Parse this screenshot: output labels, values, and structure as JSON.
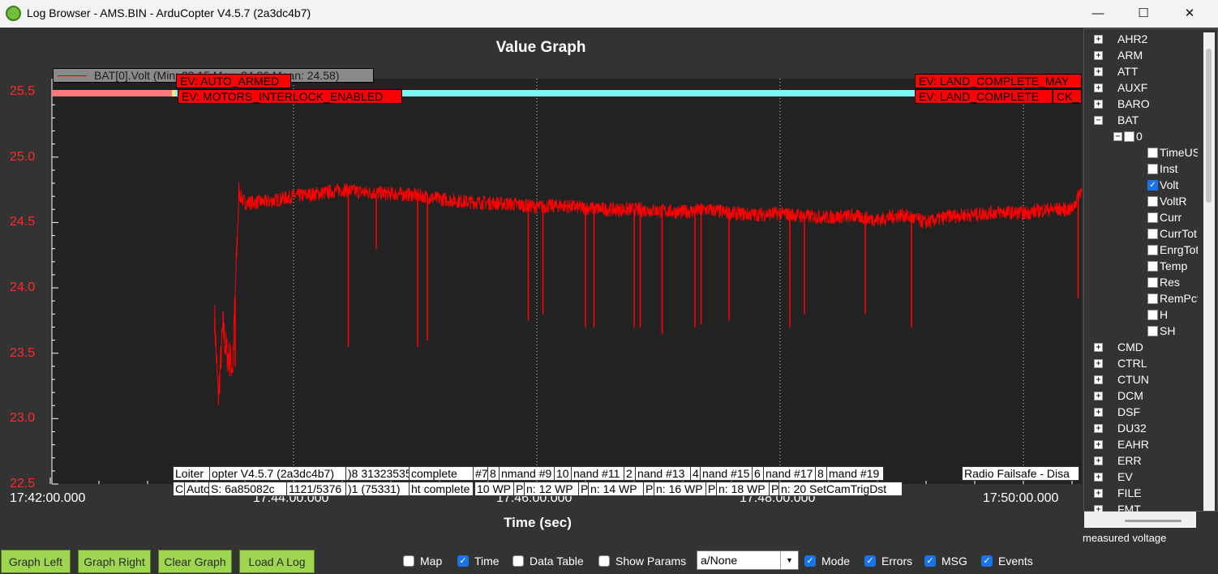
{
  "window": {
    "title": "Log Browser - AMS.BIN - ArduCopter V4.5.7 (2a3dc4b7)",
    "minimize": "—",
    "maximize": "☐",
    "close": "✕"
  },
  "graph": {
    "title": "Value Graph",
    "legend": "BAT[0].Volt  (Min: 23.15 Max: 24.86 Mean: 24.58)",
    "event_labels": [
      "EV: AUTO_ARMED",
      "EV: MOTORS_INTERLOCK_ENABLED",
      "EV: LAND_COMPLETE_MAY",
      "EV: LAND_COMPLETE",
      "CK_"
    ],
    "message_labels_top": [
      "Loiter",
      "opter V4.5.7 (2a3dc4b7)",
      ")8 31323535",
      "complete",
      "#7",
      "8",
      "nmand #9",
      "10",
      "nand #11",
      "2",
      "nand #13",
      "4",
      "nand #15",
      "6",
      "nand #17",
      "8",
      "mand #19",
      "Radio Failsafe - Disa"
    ],
    "message_labels_bottom": [
      "C",
      "Auto",
      "S: 6a85082c",
      "1121/5376",
      ")1 (75331)",
      "ht complete",
      "10 WP",
      "P",
      "n: 12 WP",
      "P",
      "n: 14 WP",
      "P",
      "n: 16 WP",
      "P",
      "n: 18 WP",
      "P",
      "n: 20 SetCamTrigDst"
    ]
  },
  "chart_data": {
    "type": "line",
    "title": "Value Graph",
    "xlabel": "Time (sec)",
    "ylabel": "",
    "x_ticks": [
      "17:42:00.000",
      "17:44:00.000",
      "17:46:00.000",
      "17:48:00.000",
      "17:50:00.000"
    ],
    "y_ticks": [
      "25.5",
      "25.0",
      "24.5",
      "24.0",
      "23.5",
      "23.0",
      "22.5"
    ],
    "ylim": [
      22.5,
      25.6
    ],
    "xlim_minutes_after_1742": [
      0,
      8.6
    ],
    "series": [
      {
        "name": "BAT[0].Volt",
        "color": "#ff0000",
        "x": [
          1.35,
          1.38,
          1.42,
          1.45,
          1.5,
          1.55,
          1.6,
          1.8,
          2.0,
          2.2,
          2.4,
          2.6,
          2.8,
          3.0,
          3.2,
          3.4,
          3.6,
          3.8,
          4.0,
          4.2,
          4.4,
          4.6,
          4.8,
          5.0,
          5.2,
          5.4,
          5.6,
          5.8,
          6.0,
          6.2,
          6.4,
          6.6,
          6.8,
          7.0,
          7.2,
          7.4,
          7.6,
          7.8,
          8.0,
          8.2,
          8.4,
          8.5,
          8.6,
          8.75
        ],
        "values": [
          23.8,
          23.15,
          23.7,
          23.5,
          23.4,
          24.72,
          24.65,
          24.66,
          24.7,
          24.72,
          24.75,
          24.73,
          24.72,
          24.71,
          24.68,
          24.66,
          24.65,
          24.64,
          24.62,
          24.63,
          24.61,
          24.6,
          24.6,
          24.59,
          24.58,
          24.6,
          24.57,
          24.56,
          24.57,
          24.55,
          24.54,
          24.55,
          24.52,
          24.56,
          24.5,
          24.55,
          24.56,
          24.58,
          24.57,
          24.6,
          24.6,
          24.8,
          24.82,
          24.78
        ]
      }
    ],
    "dips": [
      {
        "x": 1.52,
        "value": 23.4
      },
      {
        "x": 2.45,
        "value": 23.55
      },
      {
        "x": 2.68,
        "value": 24.3
      },
      {
        "x": 3.02,
        "value": 23.55
      },
      {
        "x": 3.1,
        "value": 23.6
      },
      {
        "x": 3.93,
        "value": 23.75
      },
      {
        "x": 4.05,
        "value": 23.8
      },
      {
        "x": 4.4,
        "value": 23.7
      },
      {
        "x": 4.47,
        "value": 23.7
      },
      {
        "x": 4.8,
        "value": 23.7
      },
      {
        "x": 4.85,
        "value": 23.7
      },
      {
        "x": 5.03,
        "value": 23.65
      },
      {
        "x": 5.3,
        "value": 23.7
      },
      {
        "x": 5.35,
        "value": 23.72
      },
      {
        "x": 5.58,
        "value": 23.75
      },
      {
        "x": 6.08,
        "value": 23.7
      },
      {
        "x": 6.2,
        "value": 23.8
      },
      {
        "x": 6.7,
        "value": 23.8
      },
      {
        "x": 7.08,
        "value": 23.7
      },
      {
        "x": 8.45,
        "value": 23.92
      }
    ],
    "grid": "vertical dotted at x ticks"
  },
  "footer": {
    "buttons": [
      "Graph Left",
      "Graph Right",
      "Clear Graph",
      "Load A Log"
    ],
    "checkboxes": [
      {
        "label": "Map",
        "checked": false
      },
      {
        "label": "Time",
        "checked": true
      },
      {
        "label": "Data Table",
        "checked": false
      },
      {
        "label": "Show Params",
        "checked": false
      },
      {
        "label": "Mode",
        "checked": true
      },
      {
        "label": "Errors",
        "checked": true
      },
      {
        "label": "MSG",
        "checked": true
      },
      {
        "label": "Events",
        "checked": true
      }
    ],
    "select_value": "a/None",
    "checkmark": "✓",
    "dropdown_arrow": "▼"
  },
  "tree": {
    "expand_plus": "+",
    "expand_minus": "−",
    "top_items": [
      "AHR2",
      "ARM",
      "ATT",
      "AUXF",
      "BARO",
      "BAT"
    ],
    "bat_instance": "0",
    "bat_fields": [
      {
        "label": "TimeUS",
        "checked": false
      },
      {
        "label": "Inst",
        "checked": false
      },
      {
        "label": "Volt",
        "checked": true
      },
      {
        "label": "VoltR",
        "checked": false
      },
      {
        "label": "Curr",
        "checked": false
      },
      {
        "label": "CurrTot",
        "checked": false
      },
      {
        "label": "EnrgTot",
        "checked": false
      },
      {
        "label": "Temp",
        "checked": false
      },
      {
        "label": "Res",
        "checked": false
      },
      {
        "label": "RemPct",
        "checked": false
      },
      {
        "label": "H",
        "checked": false
      },
      {
        "label": "SH",
        "checked": false
      }
    ],
    "bottom_items": [
      "CMD",
      "CTRL",
      "CTUN",
      "DCM",
      "DSF",
      "DU32",
      "EAHR",
      "ERR",
      "EV",
      "FILE",
      "FMT"
    ],
    "status": "measured voltage"
  }
}
